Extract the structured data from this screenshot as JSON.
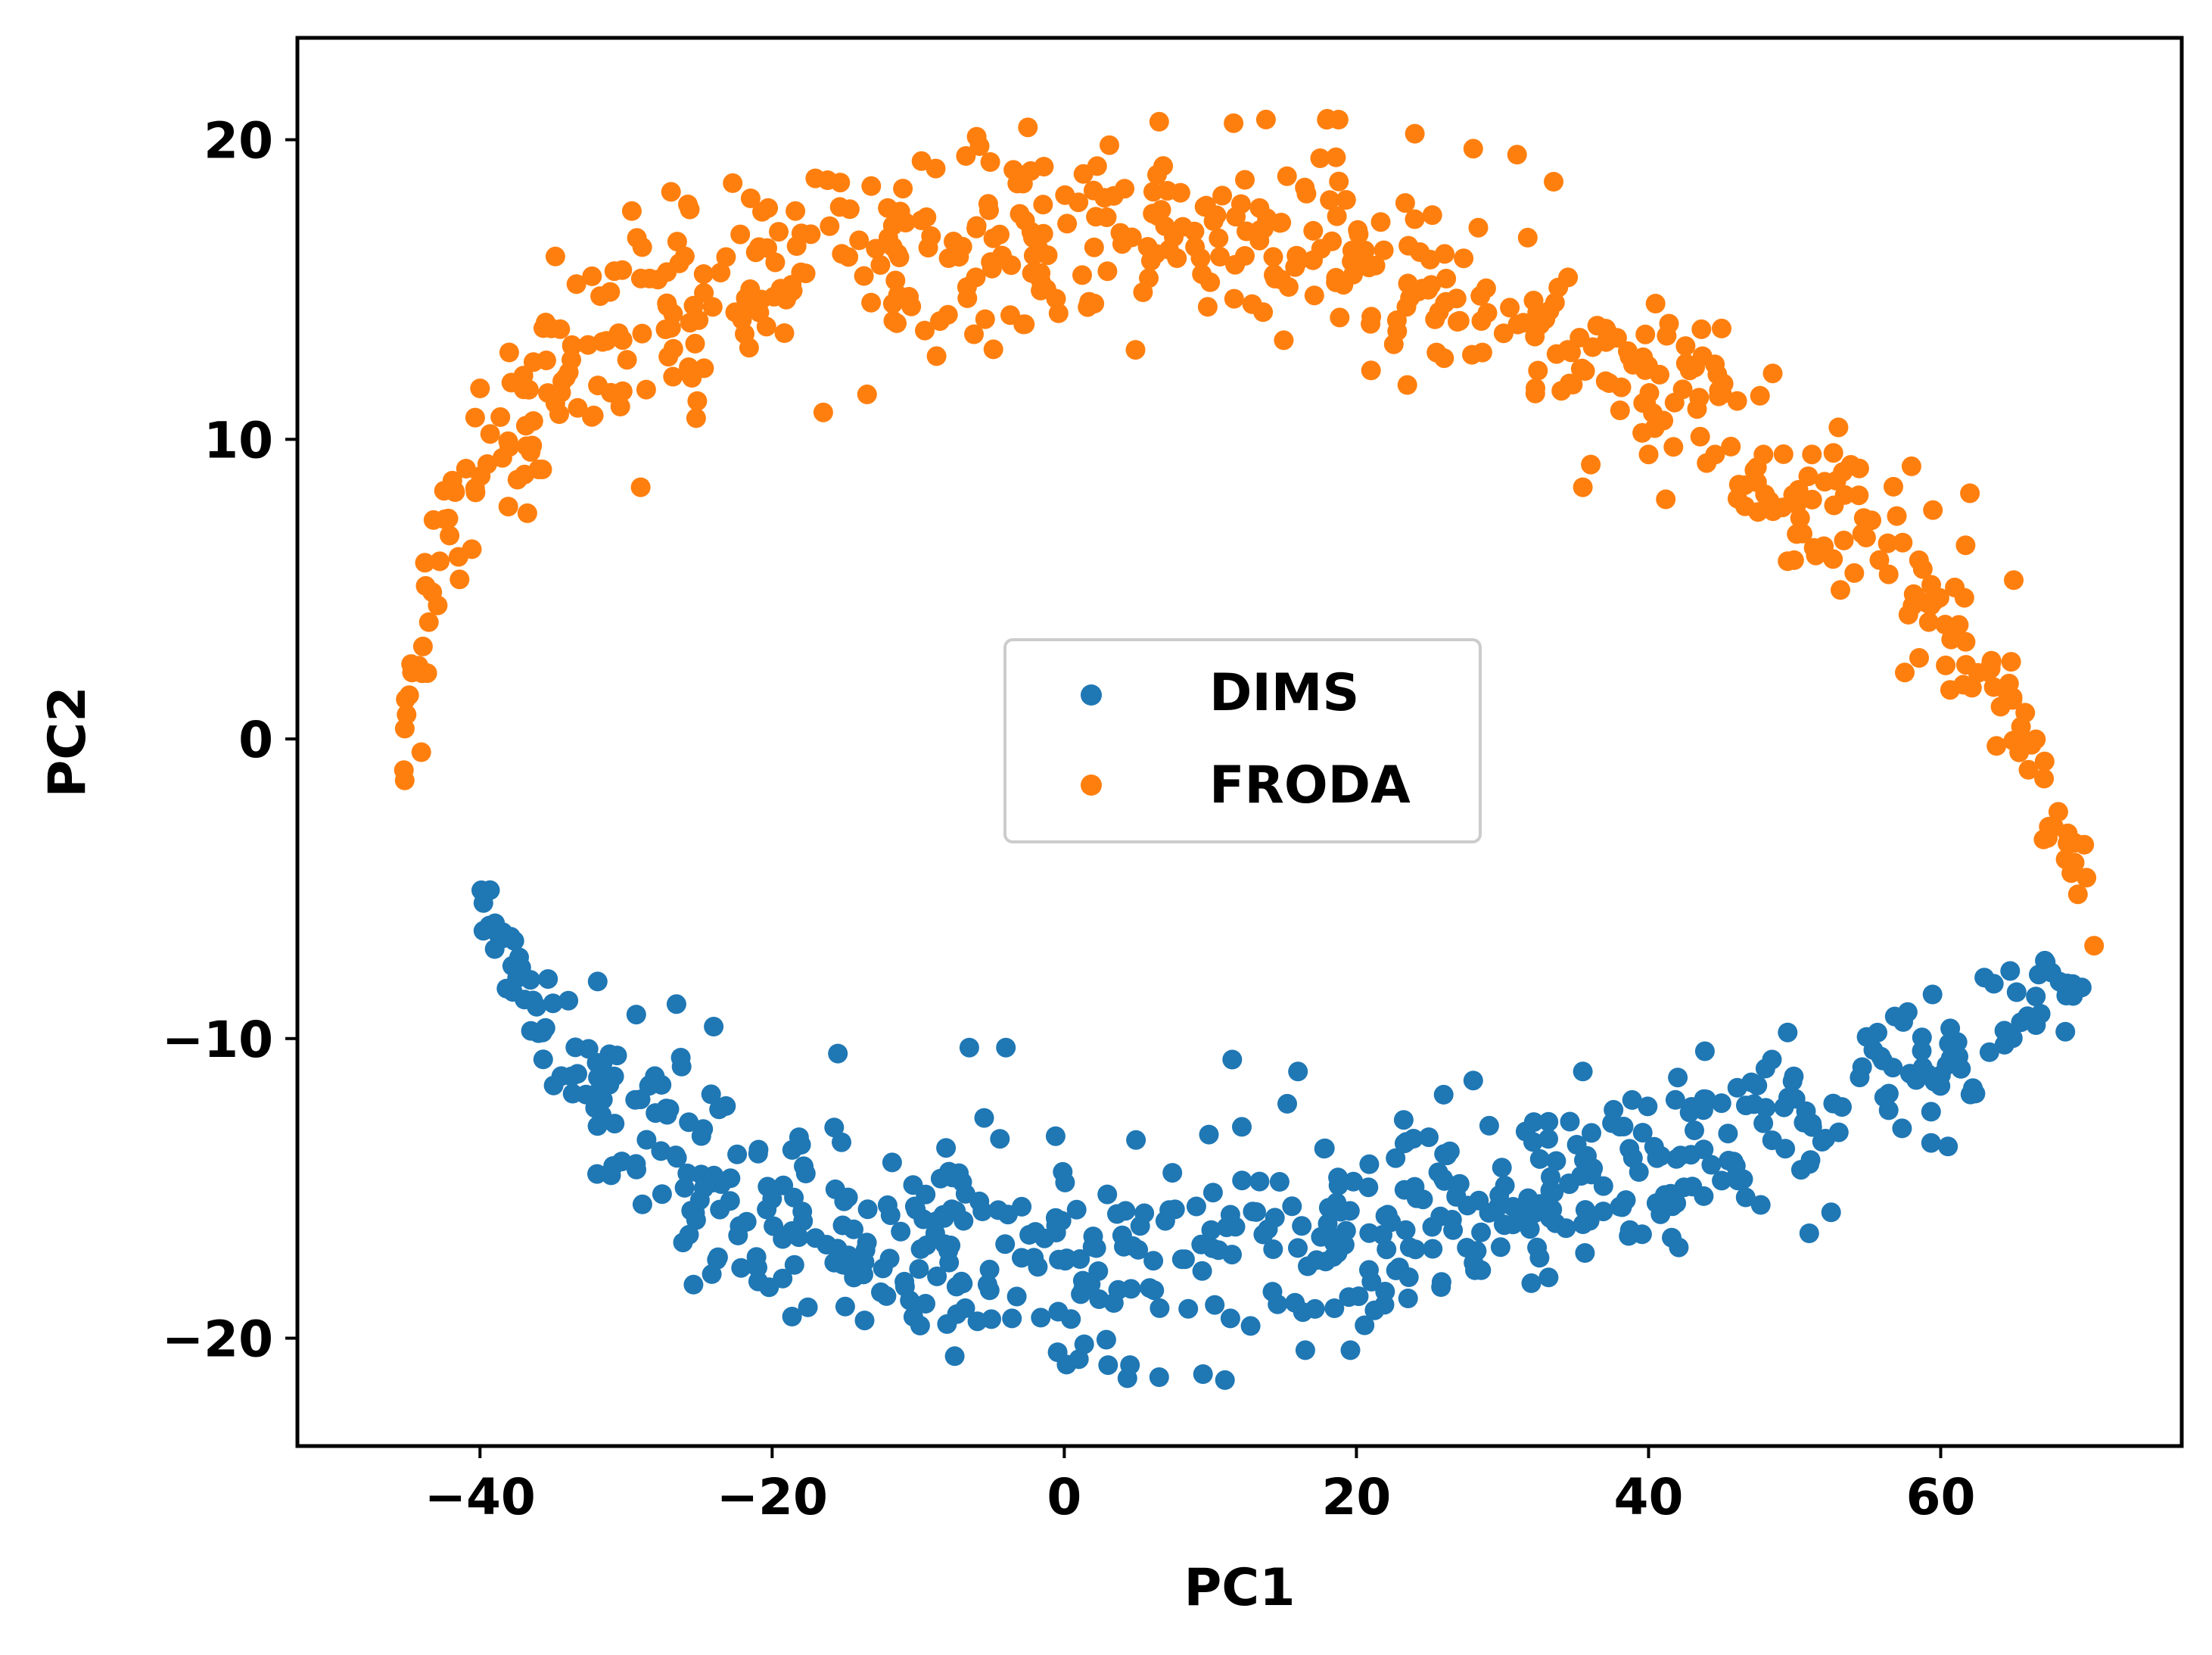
{
  "chart_data": {
    "type": "scatter",
    "title": "",
    "xlabel": "PC1",
    "ylabel": "PC2",
    "xlim": [
      -52.5,
      76.5
    ],
    "ylim": [
      -23.6,
      23.4
    ],
    "x_ticks": [
      -40,
      -20,
      0,
      20,
      40,
      60
    ],
    "y_ticks": [
      -20,
      -10,
      0,
      10,
      20
    ],
    "x_tick_labels": [
      "−40",
      "−20",
      "0",
      "20",
      "40",
      "60"
    ],
    "y_tick_labels": [
      "−20",
      "−10",
      "0",
      "10",
      "20"
    ],
    "grid": false,
    "legend_position": "center",
    "series": [
      {
        "name": "DIMS",
        "color": "#1f77b4",
        "point_count": 600,
        "curve": [
          [
            -40,
            -5.2
          ],
          [
            -35,
            -10.4
          ],
          [
            -30,
            -13.0
          ],
          [
            -20,
            -15.8
          ],
          [
            -10,
            -17.0
          ],
          [
            0,
            -17.3
          ],
          [
            10,
            -17.2
          ],
          [
            20,
            -16.6
          ],
          [
            30,
            -15.3
          ],
          [
            40,
            -14.0
          ],
          [
            50,
            -12.4
          ],
          [
            60,
            -10.6
          ],
          [
            65,
            -9.4
          ],
          [
            70,
            -8.1
          ]
        ],
        "thickness": [
          [
            -40,
            1.4
          ],
          [
            -35,
            4.5
          ],
          [
            -30,
            5.6
          ],
          [
            -20,
            6.0
          ],
          [
            -10,
            6.0
          ],
          [
            0,
            6.0
          ],
          [
            10,
            5.8
          ],
          [
            20,
            5.6
          ],
          [
            30,
            5.4
          ],
          [
            40,
            5.0
          ],
          [
            50,
            4.4
          ],
          [
            60,
            3.6
          ],
          [
            65,
            3.0
          ],
          [
            70,
            1.6
          ]
        ],
        "outliers": [
          [
            -7.5,
            -20.6
          ],
          [
            1,
            -20.7
          ],
          [
            3,
            -20.9
          ],
          [
            4.5,
            -20.9
          ],
          [
            6.5,
            -21.3
          ],
          [
            9.5,
            -21.2
          ],
          [
            11,
            -21.4
          ],
          [
            16.5,
            -20.4
          ],
          [
            -24,
            -9.6
          ],
          [
            -15.5,
            -10.5
          ],
          [
            -6.5,
            -10.3
          ],
          [
            -4,
            -10.3
          ],
          [
            11.5,
            -10.7
          ],
          [
            16,
            -11.1
          ],
          [
            28,
            -11.4
          ],
          [
            35.5,
            -11.1
          ],
          [
            42,
            -11.3
          ],
          [
            48,
            -11.0
          ],
          [
            51,
            -16.5
          ],
          [
            52.5,
            -15.8
          ],
          [
            60.5,
            -13.6
          ]
        ]
      },
      {
        "name": "FRODA",
        "color": "#ff7f0e",
        "point_count": 600,
        "curve": [
          [
            -45.5,
            -3.2
          ],
          [
            -45,
            1.0
          ],
          [
            -43,
            5.5
          ],
          [
            -40,
            9.0
          ],
          [
            -35,
            11.8
          ],
          [
            -30,
            13.5
          ],
          [
            -20,
            15.4
          ],
          [
            -10,
            16.3
          ],
          [
            0,
            16.8
          ],
          [
            10,
            17.0
          ],
          [
            20,
            16.3
          ],
          [
            30,
            14.6
          ],
          [
            40,
            12.0
          ],
          [
            50,
            8.3
          ],
          [
            55,
            6.4
          ],
          [
            60,
            4.4
          ],
          [
            65,
            0.6
          ],
          [
            70,
            -5.0
          ]
        ],
        "thickness": [
          [
            -45.5,
            1.6
          ],
          [
            -45,
            3.4
          ],
          [
            -43,
            4.6
          ],
          [
            -40,
            5.0
          ],
          [
            -35,
            5.3
          ],
          [
            -30,
            5.6
          ],
          [
            -20,
            6.0
          ],
          [
            -10,
            6.0
          ],
          [
            0,
            6.0
          ],
          [
            10,
            6.0
          ],
          [
            20,
            5.8
          ],
          [
            30,
            5.5
          ],
          [
            40,
            5.0
          ],
          [
            50,
            4.6
          ],
          [
            55,
            4.4
          ],
          [
            60,
            4.2
          ],
          [
            65,
            3.8
          ],
          [
            70,
            2.2
          ]
        ],
        "outliers": [
          [
            -26.5,
            16.6
          ],
          [
            -6,
            20.1
          ],
          [
            6.5,
            20.6
          ],
          [
            18,
            20.7
          ],
          [
            24,
            20.2
          ],
          [
            28,
            19.7
          ],
          [
            31,
            19.5
          ],
          [
            33.5,
            18.6
          ],
          [
            35.5,
            8.4
          ],
          [
            21,
            12.3
          ],
          [
            -16.5,
            10.9
          ],
          [
            -13.5,
            11.5
          ],
          [
            -29,
            8.4
          ],
          [
            -40,
            11.7
          ],
          [
            -38,
            12.9
          ],
          [
            -35.5,
            13.9
          ],
          [
            45,
            13.7
          ],
          [
            48.5,
            12.2
          ],
          [
            53,
            10.4
          ],
          [
            58,
            9.1
          ],
          [
            62,
            8.2
          ],
          [
            65,
            5.3
          ],
          [
            70.5,
            -6.9
          ]
        ]
      }
    ]
  }
}
